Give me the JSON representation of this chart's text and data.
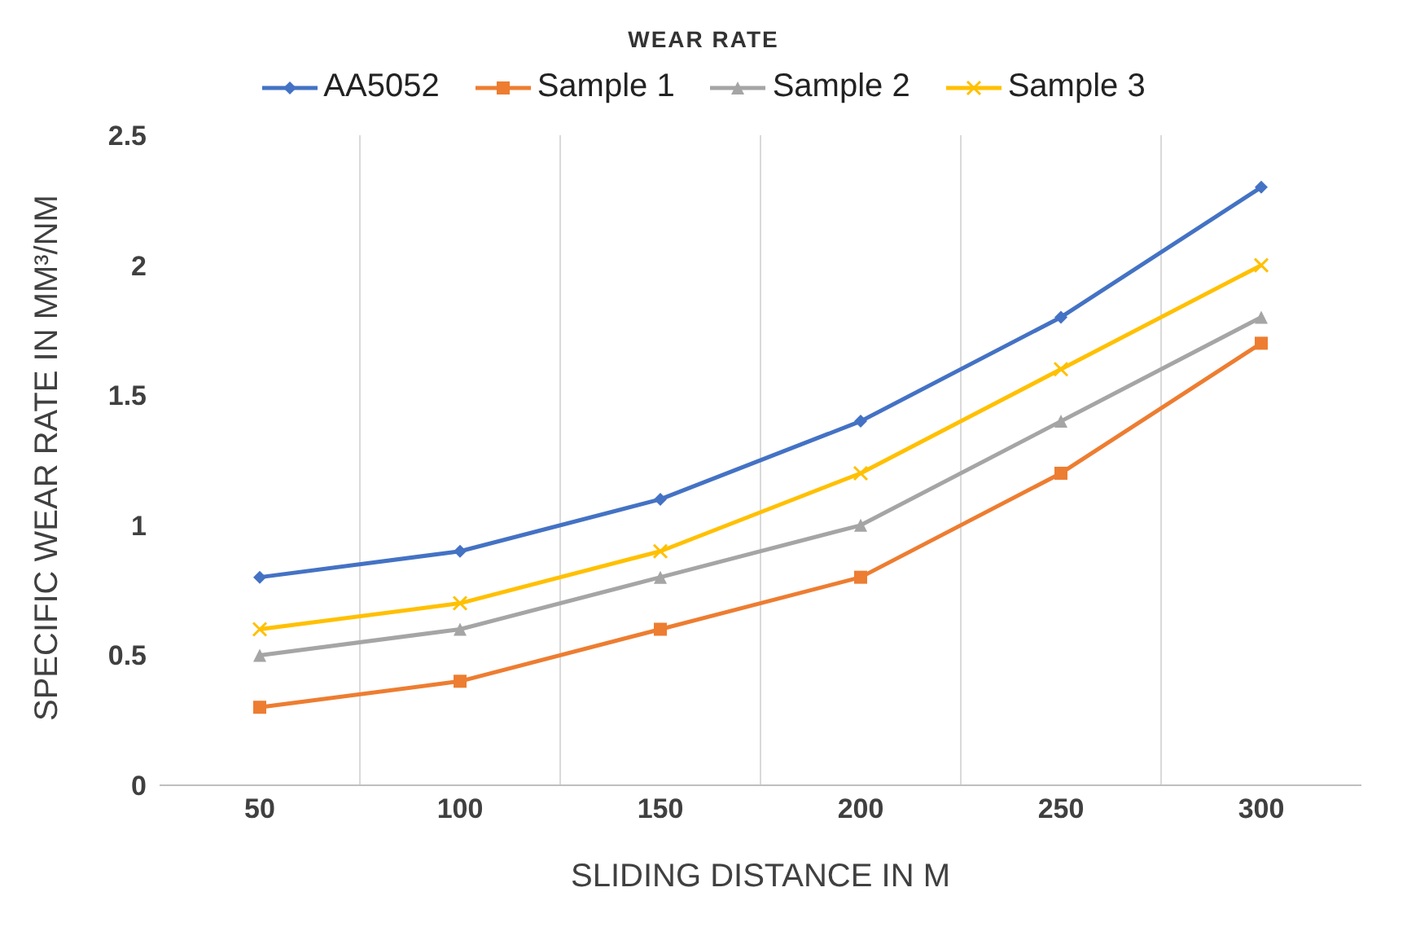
{
  "chart_data": {
    "type": "line",
    "title": "WEAR RATE",
    "xlabel": "SLIDING DISTANCE IN M",
    "ylabel": "SPECIFIC WEAR RATE IN MM³/NM",
    "categories": [
      "50",
      "100",
      "150",
      "200",
      "250",
      "300"
    ],
    "series": [
      {
        "name": "AA5052",
        "color": "#4472c4",
        "marker": "diamond",
        "values": [
          0.8,
          0.9,
          1.1,
          1.4,
          1.8,
          2.3
        ]
      },
      {
        "name": "Sample 1",
        "color": "#ed7d31",
        "marker": "square",
        "values": [
          0.3,
          0.4,
          0.6,
          0.8,
          1.2,
          1.7
        ]
      },
      {
        "name": "Sample 2",
        "color": "#a5a5a5",
        "marker": "triangle",
        "values": [
          0.5,
          0.6,
          0.8,
          1.0,
          1.4,
          1.8
        ]
      },
      {
        "name": "Sample 3",
        "color": "#ffc000",
        "marker": "cross",
        "values": [
          0.6,
          0.7,
          0.9,
          1.2,
          1.6,
          2.0
        ]
      }
    ],
    "ylim": [
      0,
      2.5
    ],
    "yticks": [
      0,
      0.5,
      1,
      1.5,
      2,
      2.5
    ],
    "grid": "x",
    "legend": "top",
    "line_style": "solid"
  }
}
